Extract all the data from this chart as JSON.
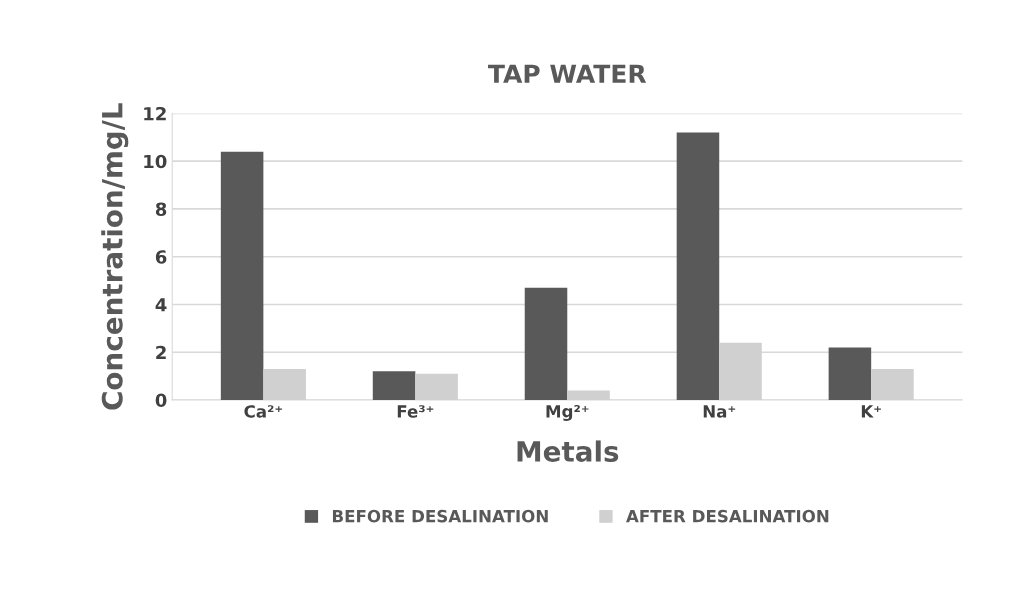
{
  "chart_data": {
    "type": "bar",
    "title": "TAP WATER",
    "xlabel": "Metals",
    "ylabel": "Concentration/mg/L",
    "categories": [
      "Ca²⁺",
      "Fe³⁺",
      "Mg²⁺",
      "Na⁺",
      "K⁺"
    ],
    "series": [
      {
        "name": "BEFORE DESALINATION",
        "color": "#595959",
        "values": [
          10.4,
          1.2,
          4.7,
          11.2,
          2.2
        ]
      },
      {
        "name": "AFTER DESALINATION",
        "color": "#d0d0d0",
        "values": [
          1.3,
          1.1,
          0.4,
          2.4,
          1.3
        ]
      }
    ],
    "ylim": [
      0,
      12
    ],
    "yticks": [
      0,
      2,
      4,
      6,
      8,
      10,
      12
    ],
    "grid": "y",
    "legend": "bottom"
  }
}
